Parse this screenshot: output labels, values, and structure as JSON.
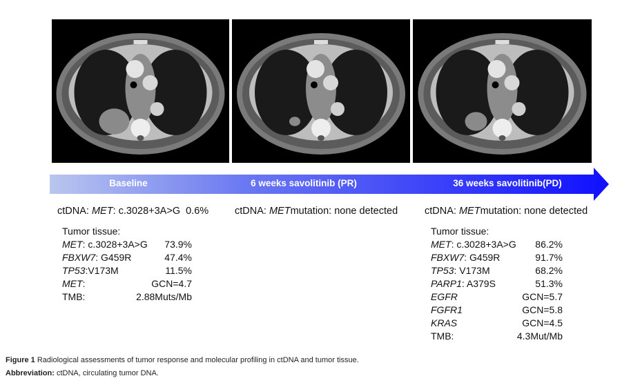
{
  "timeline": [
    "Baseline",
    "6 weeks savolitinib (PR)",
    "36 weeks savolitinib(PD)"
  ],
  "ctdna": [
    {
      "prefix": "ctDNA:",
      "gene": "MET",
      "text": ": c.3028+3A>G",
      "value": "0.6%"
    },
    {
      "prefix": "ctDNA:",
      "gene": "MET",
      "text": "mutation: none detected"
    },
    {
      "prefix": "ctDNA:",
      "gene": "MET",
      "text": "mutation: none detected"
    }
  ],
  "baseline_tissue": {
    "title": "Tumor tissue:",
    "rows": [
      {
        "gene": "MET",
        "text": ": c.3028+3A>G",
        "value": "73.9%"
      },
      {
        "gene": "FBXW7",
        "text": ": G459R",
        "value": "47.4%"
      },
      {
        "gene": "TP53",
        "text": ":V173M",
        "value": "11.5%"
      },
      {
        "gene": "MET",
        "text": ":",
        "value": "GCN=4.7"
      },
      {
        "text": "TMB:",
        "value": "2.88Muts/Mb"
      }
    ]
  },
  "progression_tissue": {
    "title": "Tumor tissue:",
    "rows": [
      {
        "gene": "MET",
        "text": ": c.3028+3A>G",
        "value": "86.2%"
      },
      {
        "gene": "FBXW7",
        "text": ": G459R",
        "value": "91.7%"
      },
      {
        "gene": "TP53",
        "text": ": V173M",
        "value": "68.2%"
      },
      {
        "gene": "PARP1",
        "text": ": A379S",
        "value": "51.3%"
      },
      {
        "gene": "EGFR",
        "value": "GCN=5.7"
      },
      {
        "gene": "FGFR1",
        "value": "GCN=5.8"
      },
      {
        "gene": "KRAS",
        "value": "GCN=4.5"
      },
      {
        "text": "TMB:",
        "value": "4.3Mut/Mb"
      }
    ]
  },
  "caption": {
    "label": "Figure 1",
    "text": "Radiological assessments of tumor response and molecular profiling in ctDNA and tumor tissue.",
    "abbrev_label": "Abbreviation:",
    "abbrev_text": "ctDNA, circulating tumor DNA."
  }
}
